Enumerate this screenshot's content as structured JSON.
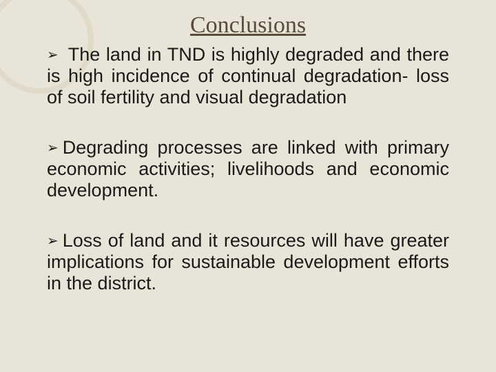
{
  "slide": {
    "title": "Conclusions",
    "bullets": [
      "The land in TND is highly degraded and there is high incidence of continual degradation- loss of soil fertility and visual degradation",
      "Degrading processes are linked with primary economic activities; livelihoods and economic development.",
      "Loss of land and it resources will have greater implications for sustainable development efforts in the district."
    ],
    "colors": {
      "background": "#e8e4d8",
      "title_color": "#5a4a3a",
      "text_color": "#1a1a1a",
      "deco_circle": "#d8d0b8"
    },
    "typography": {
      "title_fontsize": 34,
      "title_family": "Georgia, serif",
      "body_fontsize": 27,
      "body_family": "Arial, sans-serif"
    },
    "bullet_marker": "➢"
  }
}
